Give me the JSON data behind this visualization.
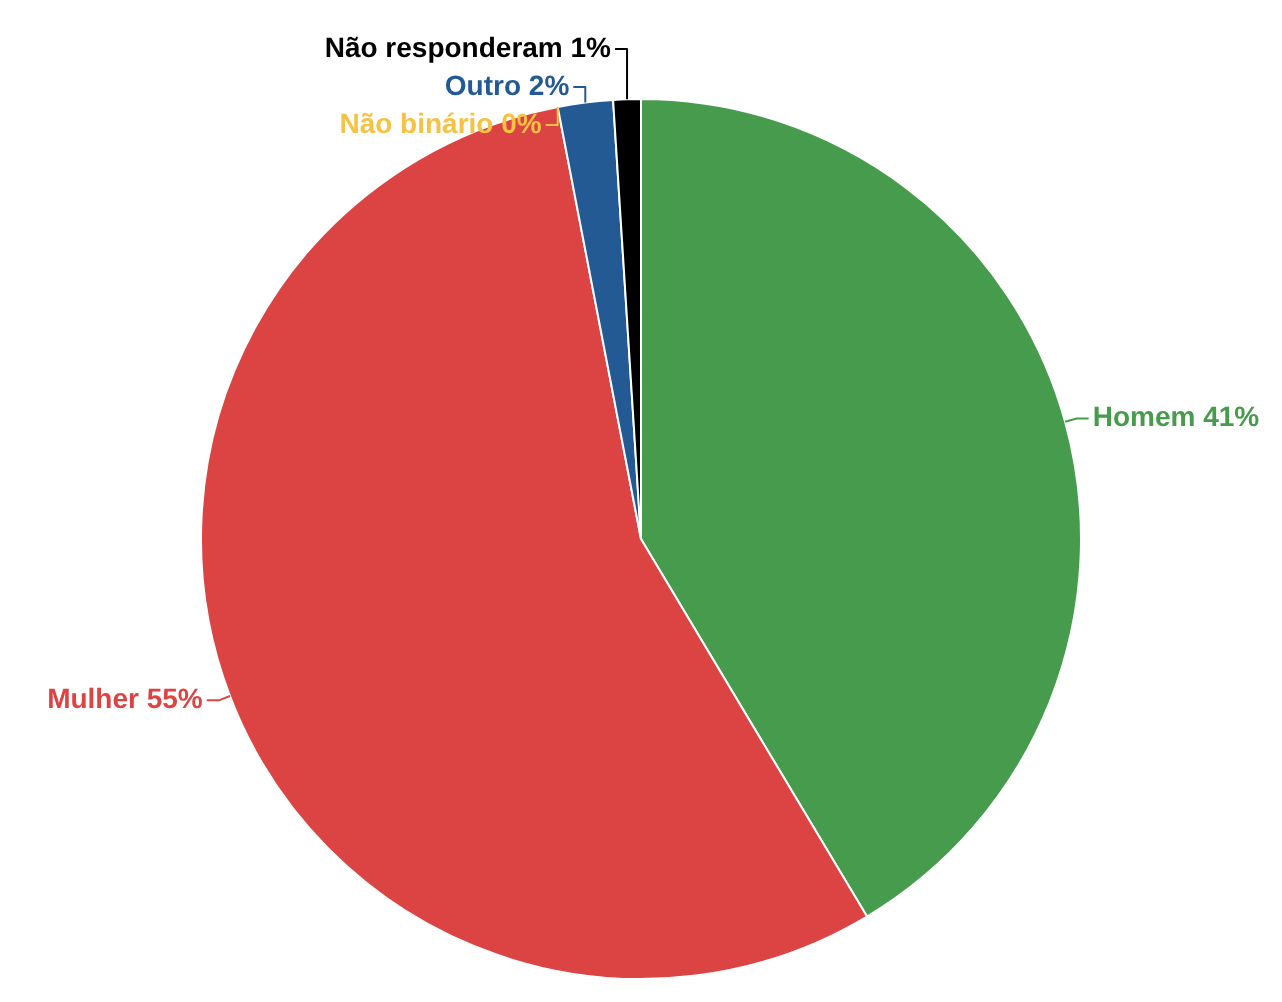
{
  "chart_data": {
    "type": "pie",
    "categories": [
      "Homem",
      "Mulher",
      "Não binário",
      "Outro",
      "Não responderam"
    ],
    "values": [
      41,
      55,
      0,
      2,
      1
    ],
    "colors": [
      "#479b4c",
      "#dc4444",
      "#f5c243",
      "#235a94",
      "#000000"
    ],
    "value_labels": [
      "41%",
      "55%",
      "0%",
      "2%",
      "1%"
    ]
  }
}
